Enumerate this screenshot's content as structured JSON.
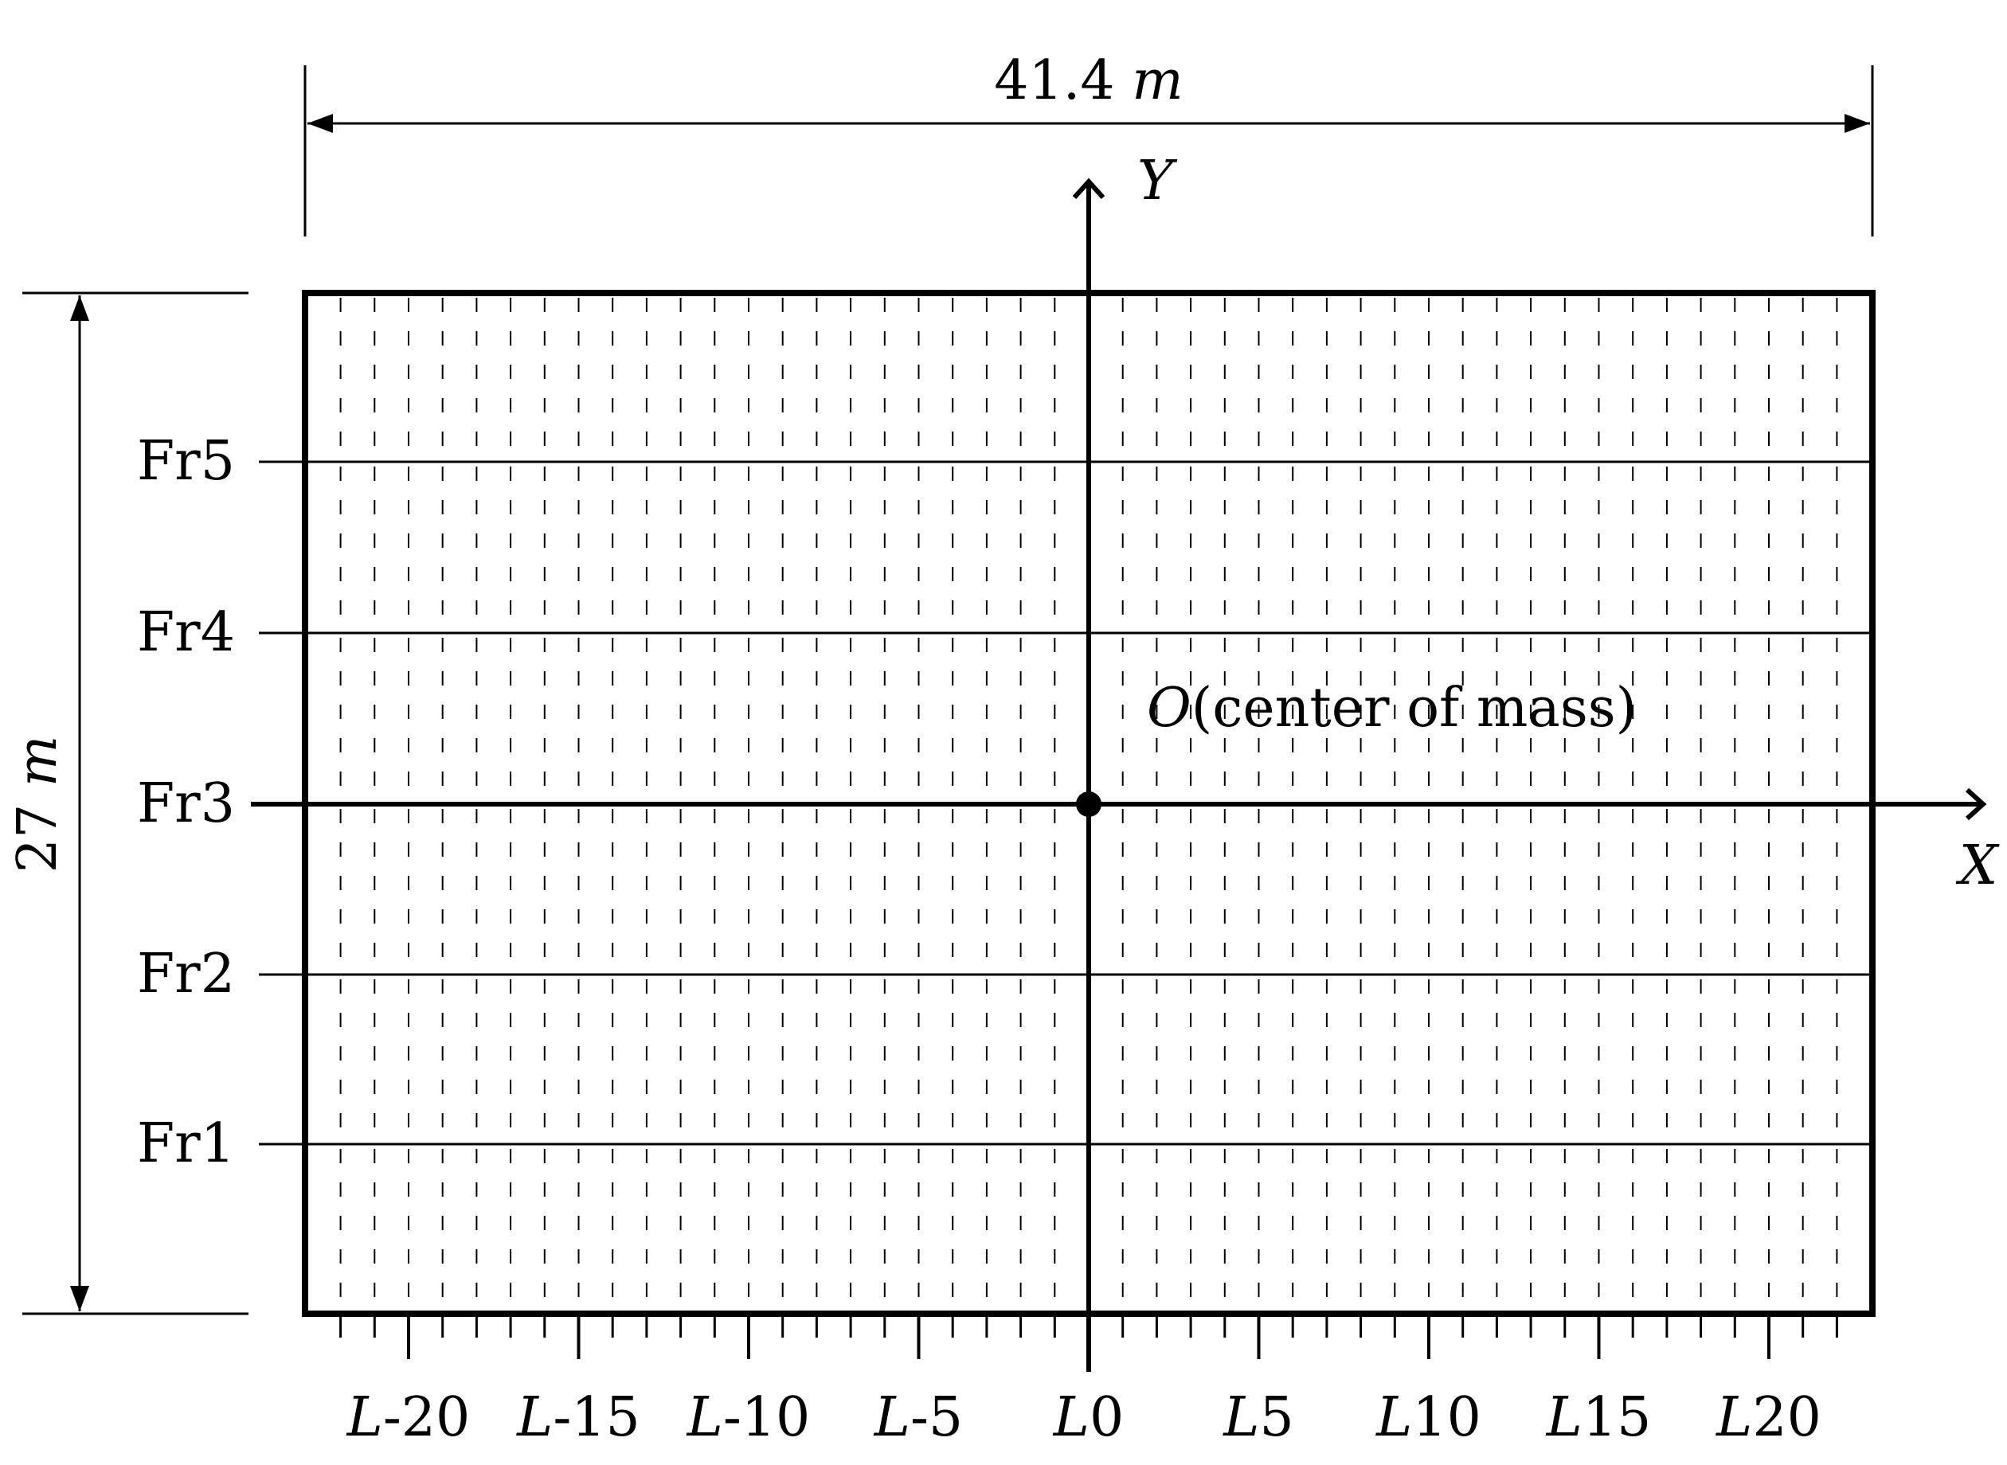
{
  "width_dimension": {
    "value": "41.4",
    "unit": "m"
  },
  "height_dimension": {
    "value": "27",
    "unit": "m"
  },
  "axes": {
    "y_label": "Y",
    "x_label": "X"
  },
  "origin": {
    "letter": "O",
    "description": "(center of mass)"
  },
  "frames": [
    {
      "id": "fr5",
      "label": "Fr5"
    },
    {
      "id": "fr4",
      "label": "Fr4"
    },
    {
      "id": "fr3",
      "label": "Fr3"
    },
    {
      "id": "fr2",
      "label": "Fr2"
    },
    {
      "id": "fr1",
      "label": "Fr1"
    }
  ],
  "lines": [
    {
      "id": "l-20",
      "prefix": "L",
      "num": "-20"
    },
    {
      "id": "l-15",
      "prefix": "L",
      "num": "-15"
    },
    {
      "id": "l-10",
      "prefix": "L",
      "num": "-10"
    },
    {
      "id": "l-5",
      "prefix": "L",
      "num": "-5"
    },
    {
      "id": "l0",
      "prefix": "L",
      "num": "0"
    },
    {
      "id": "l5",
      "prefix": "L",
      "num": "5"
    },
    {
      "id": "l10",
      "prefix": "L",
      "num": "10"
    },
    {
      "id": "l15",
      "prefix": "L",
      "num": "15"
    },
    {
      "id": "l20",
      "prefix": "L",
      "num": "20"
    }
  ]
}
